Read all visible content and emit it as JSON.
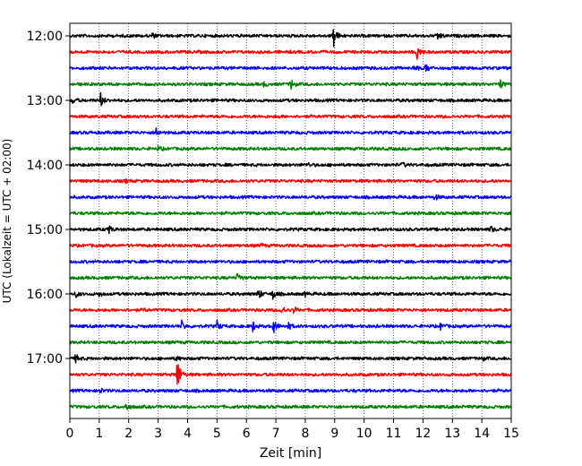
{
  "chart_data": {
    "type": "line",
    "title": "",
    "xlabel": "Zeit  [min]",
    "ylabel": "UTC (Lokalzeit = UTC + 02:00)",
    "xlim": [
      0,
      15
    ],
    "x_ticks": [
      "0",
      "1",
      "2",
      "3",
      "4",
      "5",
      "6",
      "7",
      "8",
      "9",
      "10",
      "11",
      "12",
      "13",
      "14",
      "15"
    ],
    "y_ticks": [
      "12:00",
      "13:00",
      "14:00",
      "15:00",
      "16:00",
      "17:00"
    ],
    "grid": "vertical dotted",
    "trace_colors": [
      "#000000",
      "#ff0000",
      "#0000ff",
      "#008000"
    ],
    "traces": [
      {
        "start": "12:00",
        "events": [
          {
            "t": 2.8,
            "amp": 0.15
          },
          {
            "t": 8.95,
            "amp": 0.8
          },
          {
            "t": 12.5,
            "amp": 0.3
          }
        ]
      },
      {
        "start": "12:15",
        "events": [
          {
            "t": 11.8,
            "amp": 0.5
          }
        ]
      },
      {
        "start": "12:30",
        "events": [
          {
            "t": 11.7,
            "amp": 0.2
          },
          {
            "t": 12.1,
            "amp": 0.3
          }
        ]
      },
      {
        "start": "12:45",
        "events": [
          {
            "t": 6.6,
            "amp": 0.15
          },
          {
            "t": 7.5,
            "amp": 0.35
          },
          {
            "t": 14.6,
            "amp": 0.35
          }
        ]
      },
      {
        "start": "13:00",
        "events": [
          {
            "t": 0.1,
            "amp": 0.15
          },
          {
            "t": 1.05,
            "amp": 0.45
          }
        ]
      },
      {
        "start": "13:15",
        "events": [
          {
            "t": 7.0,
            "amp": 0.08
          }
        ]
      },
      {
        "start": "13:30",
        "events": [
          {
            "t": 2.9,
            "amp": 0.45
          }
        ]
      },
      {
        "start": "13:45",
        "events": [
          {
            "t": 3.0,
            "amp": 0.12
          }
        ]
      },
      {
        "start": "14:00",
        "events": [
          {
            "t": 8.1,
            "amp": 0.1
          },
          {
            "t": 11.3,
            "amp": 0.15
          }
        ]
      },
      {
        "start": "14:15",
        "events": [
          {
            "t": 1.9,
            "amp": 0.08
          }
        ]
      },
      {
        "start": "14:30",
        "events": [
          {
            "t": 12.4,
            "amp": 0.2
          }
        ]
      },
      {
        "start": "14:45",
        "events": []
      },
      {
        "start": "15:00",
        "events": [
          {
            "t": 1.3,
            "amp": 0.3
          },
          {
            "t": 14.3,
            "amp": 0.2
          }
        ]
      },
      {
        "start": "15:15",
        "events": [
          {
            "t": 6.5,
            "amp": 0.1
          }
        ]
      },
      {
        "start": "15:30",
        "events": []
      },
      {
        "start": "15:45",
        "events": [
          {
            "t": 5.7,
            "amp": 0.35
          }
        ]
      },
      {
        "start": "16:00",
        "events": [
          {
            "t": 0.2,
            "amp": 0.2
          },
          {
            "t": 1.0,
            "amp": 0.15
          },
          {
            "t": 6.4,
            "amp": 0.35
          },
          {
            "t": 6.9,
            "amp": 0.3
          },
          {
            "t": 8.0,
            "amp": 0.1
          }
        ]
      },
      {
        "start": "16:15",
        "events": [
          {
            "t": 2.5,
            "amp": 0.1
          },
          {
            "t": 7.2,
            "amp": 0.3
          },
          {
            "t": 7.6,
            "amp": 0.2
          }
        ]
      },
      {
        "start": "16:30",
        "events": [
          {
            "t": 3.8,
            "amp": 0.3
          },
          {
            "t": 5.0,
            "amp": 0.3
          },
          {
            "t": 6.2,
            "amp": 0.35
          },
          {
            "t": 6.9,
            "amp": 0.5
          },
          {
            "t": 7.4,
            "amp": 0.25
          },
          {
            "t": 12.6,
            "amp": 0.2
          }
        ]
      },
      {
        "start": "16:45",
        "events": []
      },
      {
        "start": "17:00",
        "events": [
          {
            "t": 0.2,
            "amp": 0.25
          },
          {
            "t": 3.6,
            "amp": 0.15
          },
          {
            "t": 14.0,
            "amp": 0.12
          }
        ]
      },
      {
        "start": "17:15",
        "events": [
          {
            "t": 3.65,
            "amp": 1.2
          }
        ]
      },
      {
        "start": "17:30",
        "events": [
          {
            "t": 1.0,
            "amp": 0.15
          }
        ]
      },
      {
        "start": "17:45",
        "events": [
          {
            "t": 1.9,
            "amp": 0.25
          }
        ]
      }
    ]
  }
}
